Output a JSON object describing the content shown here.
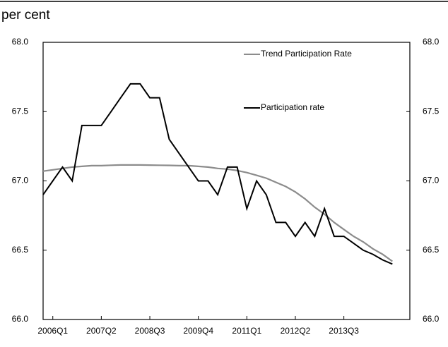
{
  "chart_data": {
    "type": "line",
    "y_label": "per cent",
    "categories": [
      null,
      "2006Q1",
      null,
      null,
      null,
      null,
      "2007Q2",
      null,
      null,
      null,
      null,
      "2008Q3",
      null,
      null,
      null,
      null,
      "2009Q4",
      null,
      null,
      null,
      null,
      "2011Q1",
      null,
      null,
      null,
      null,
      "2012Q2",
      null,
      null,
      null,
      null,
      "2013Q3",
      null,
      null,
      null,
      null,
      null
    ],
    "series": [
      {
        "name": "Trend Participation Rate",
        "color": "#8c8c8c",
        "values": [
          67.07,
          67.08,
          67.09,
          67.1,
          67.105,
          67.11,
          67.11,
          67.113,
          67.115,
          67.115,
          67.115,
          67.114,
          67.113,
          67.112,
          67.11,
          67.11,
          67.105,
          67.1,
          67.09,
          67.085,
          67.075,
          67.06,
          67.04,
          67.02,
          66.99,
          66.96,
          66.92,
          66.87,
          66.81,
          66.76,
          66.7,
          66.65,
          66.6,
          66.56,
          66.51,
          66.47,
          66.42
        ]
      },
      {
        "name": "Participation rate",
        "color": "#000000",
        "values": [
          66.9,
          67.0,
          67.1,
          67.0,
          67.4,
          67.4,
          67.4,
          67.5,
          67.6,
          67.7,
          67.7,
          67.6,
          67.6,
          67.3,
          67.2,
          67.1,
          67.0,
          67.0,
          66.9,
          67.1,
          67.1,
          66.8,
          67.0,
          66.9,
          66.7,
          66.7,
          66.6,
          66.7,
          66.6,
          66.8,
          66.6,
          66.6,
          66.55,
          66.5,
          66.47,
          66.43,
          66.4
        ]
      }
    ],
    "ylim": [
      66,
      68
    ],
    "yticks": [
      {
        "value": 66,
        "label": "66.0"
      },
      66.5,
      {
        "value": 67,
        "label": "67.0"
      },
      67.5,
      {
        "value": 68,
        "label": "68.0"
      }
    ],
    "y2lim": [
      66,
      68
    ],
    "y2ticks": [
      {
        "value": 66,
        "label": "66.0"
      },
      66.5,
      {
        "value": 67,
        "label": "67.0"
      },
      67.5,
      {
        "value": 68,
        "label": "68.0"
      }
    ],
    "grid": false
  }
}
